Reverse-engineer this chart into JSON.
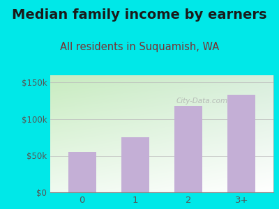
{
  "categories": [
    "0",
    "1",
    "2",
    "3+"
  ],
  "values": [
    55000,
    75000,
    118000,
    133000
  ],
  "bar_color": "#c4afd6",
  "title": "Median family income by earners",
  "subtitle": "All residents in Suquamish, WA",
  "title_color": "#1a1a1a",
  "subtitle_color": "#7a3030",
  "outer_bg": "#00e8e8",
  "yticks": [
    0,
    50000,
    100000,
    150000
  ],
  "ytick_labels": [
    "$0",
    "$50k",
    "$100k",
    "$150k"
  ],
  "ylim": [
    0,
    160000
  ],
  "axis_color": "#555555",
  "watermark": "City-Data.com",
  "title_fontsize": 14,
  "subtitle_fontsize": 10.5
}
